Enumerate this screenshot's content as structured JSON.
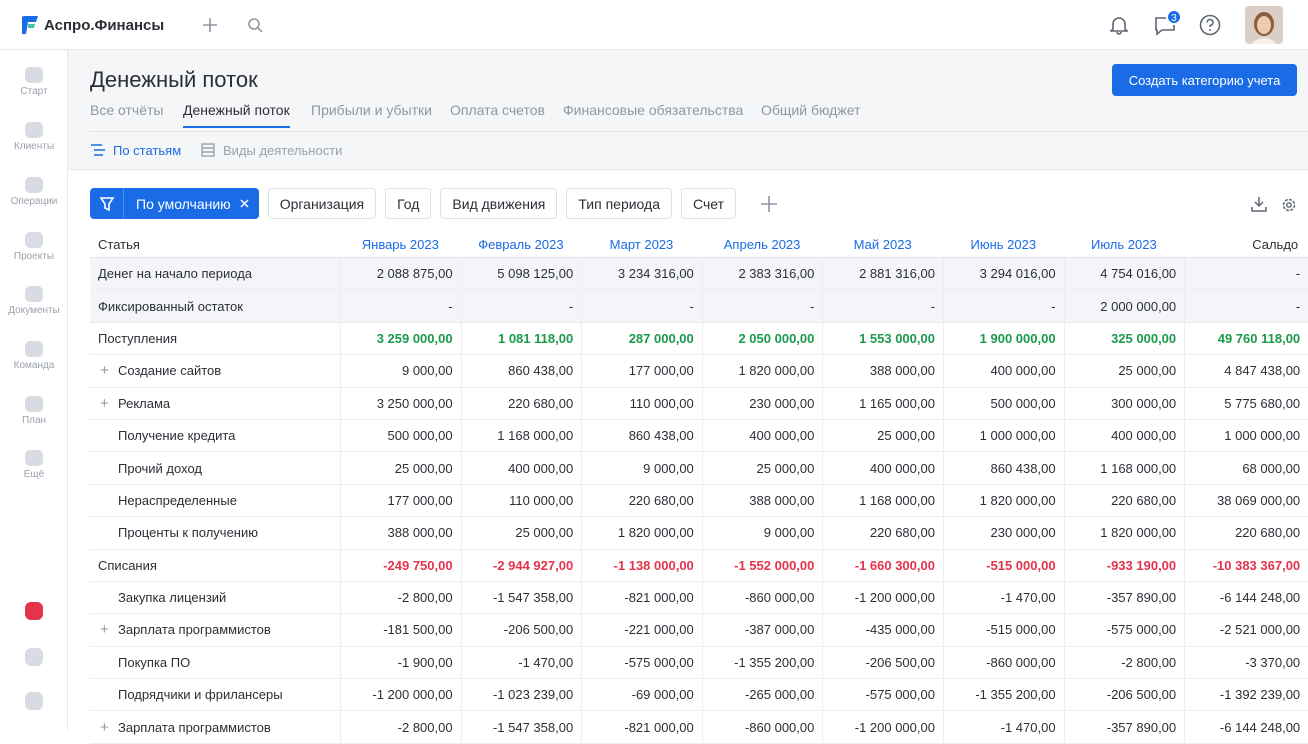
{
  "app": {
    "name": "Аспро.Финансы",
    "badge": "3"
  },
  "sidebar": [
    "Старт",
    "Клиенты",
    "Операции",
    "Проекты",
    "Документы",
    "Команда",
    "План",
    "Ещё"
  ],
  "page": {
    "title": "Денежный поток",
    "button": "Создать категорию учета",
    "tabs": [
      "Все отчёты",
      "Денежный поток",
      "Прибыли и убытки",
      "Оплата счетов",
      "Финансовые обязательства",
      "Общий бюджет"
    ],
    "subtabs": [
      "По статьям",
      "Виды деятельности"
    ]
  },
  "filters": {
    "active": "По умолчанию",
    "items": [
      "Организация",
      "Год",
      "Вид движения",
      "Тип периода",
      "Счет"
    ]
  },
  "table": {
    "columns": [
      "Статья",
      "Январь 2023",
      "Февраль 2023",
      "Март 2023",
      "Апрель 2023",
      "Май 2023",
      "Июнь 2023",
      "Июль 2023",
      "Сальдо"
    ],
    "rows": [
      [
        "Денег на начало периода",
        "2 088 875,00",
        "5 098 125,00",
        "3 234 316,00",
        "2 383 316,00",
        "2 881 316,00",
        "3 294 016,00",
        "4 754 016,00",
        "-"
      ],
      [
        "Фиксированный остаток",
        "-",
        "-",
        "-",
        "-",
        "-",
        "-",
        "2 000 000,00",
        "-"
      ],
      [
        "Поступления",
        "3 259 000,00",
        "1 081 118,00",
        "287 000,00",
        "2 050 000,00",
        "1 553 000,00",
        "1 900 000,00",
        "325 000,00",
        "49 760 118,00"
      ],
      [
        "Создание сайтов",
        "9 000,00",
        "860 438,00",
        "177 000,00",
        "1 820 000,00",
        "388 000,00",
        "400 000,00",
        "25 000,00",
        "4 847 438,00"
      ],
      [
        "Реклама",
        "3 250 000,00",
        "220 680,00",
        "110 000,00",
        "230 000,00",
        "1 165 000,00",
        "500 000,00",
        "300 000,00",
        "5 775 680,00"
      ],
      [
        "Получение кредита",
        "500 000,00",
        "1 168 000,00",
        "860 438,00",
        "400 000,00",
        "25 000,00",
        "1 000 000,00",
        "400 000,00",
        "1 000 000,00"
      ],
      [
        "Прочий доход",
        "25 000,00",
        "400 000,00",
        "9 000,00",
        "25 000,00",
        "400 000,00",
        "860 438,00",
        "1 168 000,00",
        "68 000,00"
      ],
      [
        "Нераспределенные",
        "177 000,00",
        "110 000,00",
        "220 680,00",
        "388 000,00",
        "1 168 000,00",
        "1 820 000,00",
        "220 680,00",
        "38 069 000,00"
      ],
      [
        "Проценты к получению",
        "388 000,00",
        "25 000,00",
        "1 820 000,00",
        "9 000,00",
        "220 680,00",
        "230 000,00",
        "1 820 000,00",
        "220 680,00"
      ],
      [
        "Списания",
        "-249 750,00",
        "-2 944 927,00",
        "-1 138 000,00",
        "-1 552 000,00",
        "-1 660 300,00",
        "-515 000,00",
        "-933 190,00",
        "-10 383 367,00"
      ],
      [
        "Закупка лицензий",
        "-2 800,00",
        "-1 547 358,00",
        "-821 000,00",
        "-860 000,00",
        "-1 200 000,00",
        "-1 470,00",
        "-357 890,00",
        "-6 144 248,00"
      ],
      [
        "Зарплата программистов",
        "-181 500,00",
        "-206 500,00",
        "-221 000,00",
        "-387 000,00",
        "-435 000,00",
        "-515 000,00",
        "-575 000,00",
        "-2 521 000,00"
      ],
      [
        "Покупка ПО",
        "-1 900,00",
        "-1 470,00",
        "-575 000,00",
        "-1 355 200,00",
        "-206 500,00",
        "-860 000,00",
        "-2 800,00",
        "-3 370,00"
      ],
      [
        "Подрядчики и фрилансеры",
        "-1 200 000,00",
        "-1 023 239,00",
        "-69 000,00",
        "-265 000,00",
        "-575 000,00",
        "-1 355 200,00",
        "-206 500,00",
        "-1 392 239,00"
      ],
      [
        "Зарплата программистов",
        "-2 800,00",
        "-1 547 358,00",
        "-821 000,00",
        "-860 000,00",
        "-1 200 000,00",
        "-1 470,00",
        "-357 890,00",
        "-6 144 248,00"
      ]
    ]
  }
}
